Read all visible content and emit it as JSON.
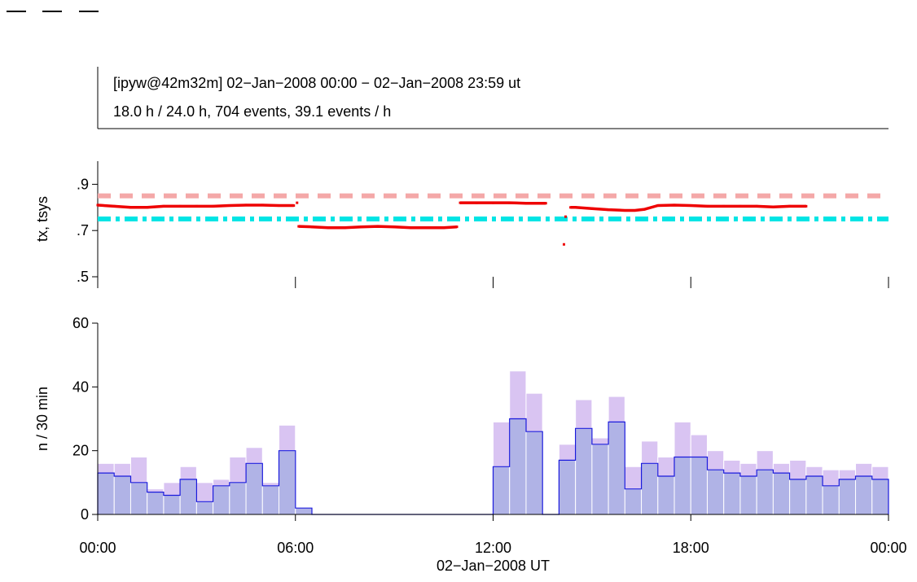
{
  "header": {
    "line1": "[ipyw@42m32m] 02−Jan−2008 00:00 − 02−Jan−2008 23:59 ut",
    "line2": "18.0 h / 24.0 h, 704 events, 39.1 events / h"
  },
  "colors": {
    "tx": "#ee0000",
    "ref_upper": "#f4a8a8",
    "ref_lower": "#00e5e5",
    "hist_total": "#d9c4f2",
    "hist_subset_fill": "#b0b3e6",
    "hist_subset_line": "#1a1adc"
  },
  "chart_data": [
    {
      "type": "line",
      "ylabel": "tx, tsys",
      "ylim": [
        0.5,
        1.0
      ],
      "yticks": [
        0.5,
        0.7,
        0.9
      ],
      "ytick_labels": [
        ".5",
        ".7",
        ".9"
      ],
      "xlim": [
        0,
        24
      ],
      "reference_lines": [
        {
          "y": 0.85,
          "style": "dashed",
          "color": "#f4a8a8"
        },
        {
          "y": 0.75,
          "style": "dash-dot",
          "color": "#00e5e5"
        }
      ],
      "series": [
        {
          "style": "points",
          "color": "#ee0000",
          "x": [
            0.0,
            0.5,
            1.0,
            1.5,
            2.0,
            2.5,
            3.0,
            3.5,
            4.0,
            4.5,
            5.0,
            5.5,
            5.95,
            6.05,
            6.1,
            6.5,
            7.0,
            7.5,
            8.0,
            8.5,
            9.0,
            9.5,
            10.0,
            10.5,
            10.9,
            11.0,
            11.5,
            12.0,
            12.5,
            13.0,
            13.6,
            14.15,
            14.2,
            14.35,
            14.5,
            15.0,
            15.5,
            16.0,
            16.3,
            16.6,
            17.0,
            17.5,
            18.0,
            18.5,
            19.0,
            19.5,
            20.0,
            20.5,
            21.0,
            21.5
          ],
          "y": [
            0.81,
            0.805,
            0.8,
            0.8,
            0.805,
            0.805,
            0.805,
            0.805,
            0.808,
            0.81,
            0.81,
            0.808,
            0.808,
            0.82,
            0.718,
            0.716,
            0.712,
            0.712,
            0.716,
            0.718,
            0.716,
            0.712,
            0.712,
            0.712,
            0.716,
            0.82,
            0.82,
            0.82,
            0.82,
            0.818,
            0.818,
            0.64,
            0.76,
            0.8,
            0.8,
            0.795,
            0.79,
            0.787,
            0.787,
            0.792,
            0.808,
            0.81,
            0.808,
            0.805,
            0.805,
            0.805,
            0.805,
            0.802,
            0.805,
            0.805
          ]
        }
      ]
    },
    {
      "type": "bar",
      "ylabel": "n / 30 min",
      "xlabel": "02−Jan−2008 UT",
      "ylim": [
        0,
        60
      ],
      "yticks": [
        0,
        20,
        40,
        60
      ],
      "xlim": [
        0,
        24
      ],
      "xticks": [
        0,
        6,
        12,
        18,
        24
      ],
      "xtick_labels": [
        "00:00",
        "06:00",
        "12:00",
        "18:00",
        "00:00"
      ],
      "bin_width_h": 0.5,
      "series": [
        {
          "style": "filled-bars",
          "color": "#d9c4f2",
          "values": [
            16,
            16,
            18,
            8,
            10,
            15,
            10,
            11,
            18,
            21,
            10,
            28,
            2,
            0,
            0,
            0,
            0,
            0,
            0,
            0,
            0,
            0,
            0,
            0,
            29,
            45,
            38,
            0,
            22,
            36,
            24,
            37,
            15,
            23,
            18,
            29,
            25,
            20,
            17,
            16,
            20,
            16,
            17,
            15,
            14,
            14,
            16,
            15
          ]
        },
        {
          "style": "step-outline-filled",
          "color": "#1a1adc",
          "values": [
            13,
            12,
            10,
            7,
            6,
            11,
            4,
            9,
            10,
            16,
            9,
            20,
            2,
            0,
            0,
            0,
            0,
            0,
            0,
            0,
            0,
            0,
            0,
            0,
            15,
            30,
            26,
            0,
            17,
            27,
            22,
            29,
            8,
            16,
            12,
            18,
            18,
            14,
            13,
            12,
            14,
            13,
            11,
            12,
            9,
            11,
            12,
            11
          ]
        }
      ]
    }
  ]
}
